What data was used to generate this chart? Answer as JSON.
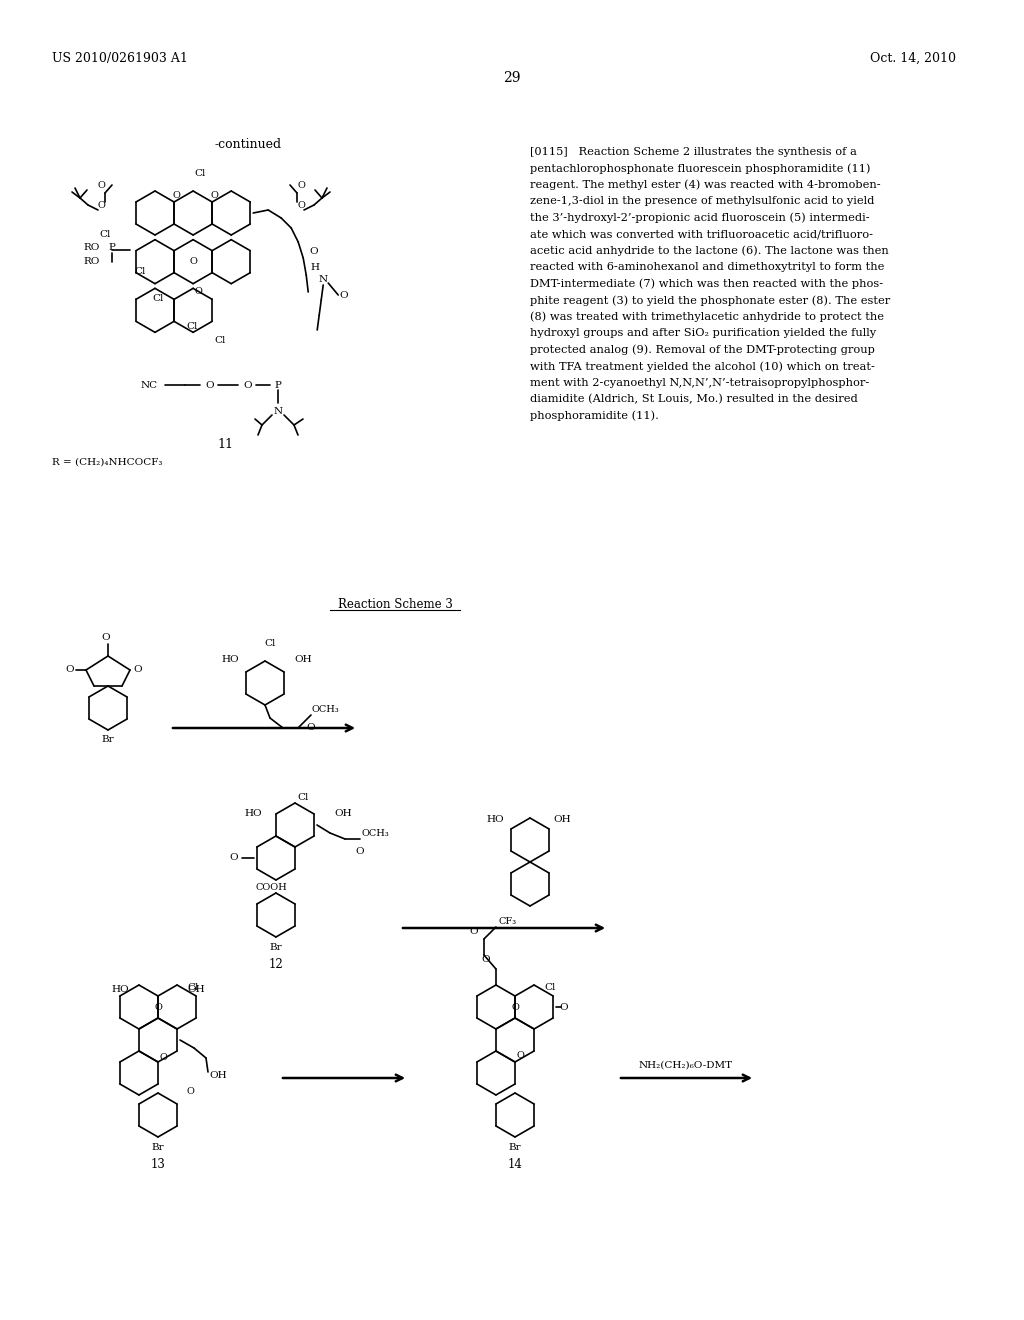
{
  "background_color": "#ffffff",
  "page_number": "29",
  "header_left": "US 2010/0261903 A1",
  "header_right": "Oct. 14, 2010",
  "top_label": "-continued",
  "compound_label_11": "11",
  "compound_label_R": "R = (CH₂)₄NHCOCF₃",
  "reaction_scheme_3_label": "Reaction Scheme 3",
  "compound_12": "12",
  "compound_13": "13",
  "compound_14": "14",
  "nh2_label": "NH₂(CH₂)₆O-DMT",
  "lines_0115": [
    "[0115]   Reaction Scheme 2 illustrates the synthesis of a",
    "pentachlorophosphonate fluorescein phosphoramidite (11)",
    "reagent. The methyl ester (4) was reacted with 4-bromoben-",
    "zene-1,3-diol in the presence of methylsulfonic acid to yield",
    "the 3’-hydroxyl-2’-propionic acid fluoroscein (5) intermedi-",
    "ate which was converted with trifluoroacetic acid/trifluoro-",
    "acetic acid anhydride to the lactone (6). The lactone was then",
    "reacted with 6-aminohexanol and dimethoxytrityl to form the",
    "DMT-intermediate (7) which was then reacted with the phos-",
    "phite reagent (3) to yield the phosphonate ester (8). The ester",
    "(8) was treated with trimethylacetic anhydride to protect the",
    "hydroxyl groups and after SiO₂ purification yielded the fully",
    "protected analog (9). Removal of the DMT-protecting group",
    "with TFA treatment yielded the alcohol (10) which on treat-",
    "ment with 2-cyanoethyl N,N,N’,N’-tetraisopropylphosphor-",
    "diamidite (Aldrich, St Louis, Mo.) resulted in the desired",
    "phosphoramidite (11)."
  ]
}
